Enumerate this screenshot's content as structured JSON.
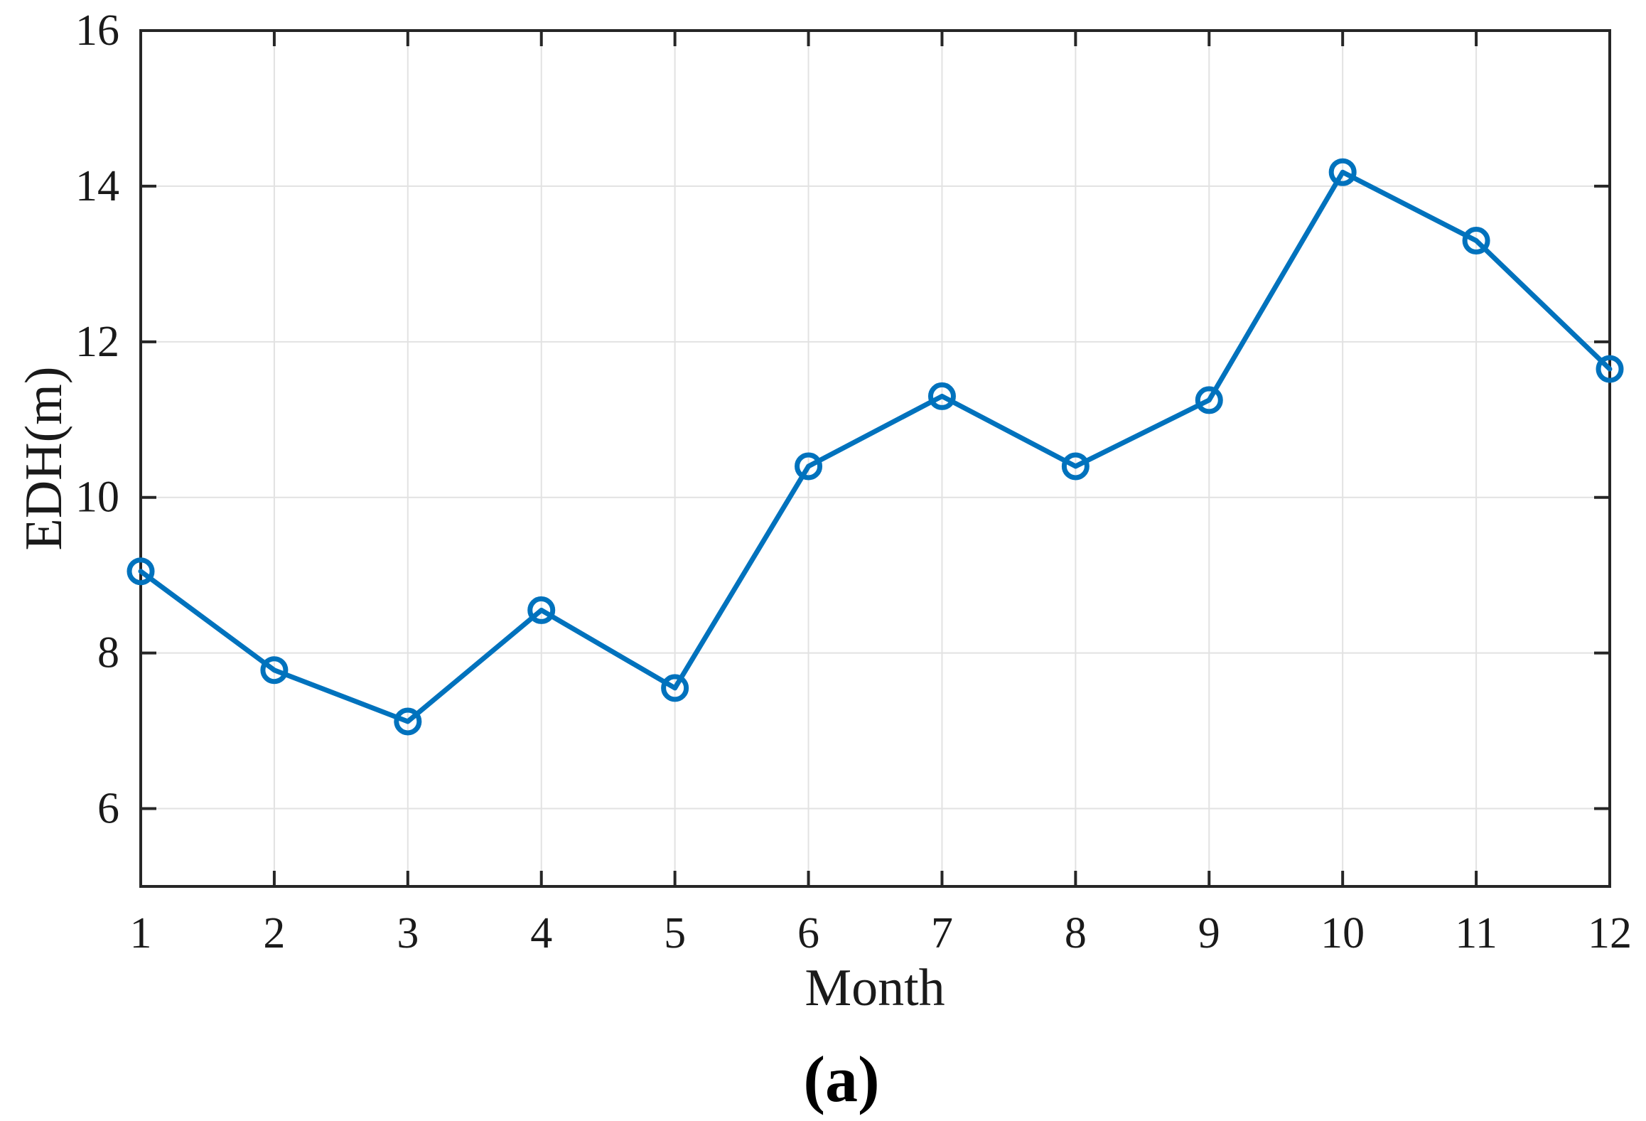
{
  "figure": {
    "caption": "(a)"
  },
  "colors": {
    "line": "#0072bd",
    "grid": "#e2e2e2",
    "axis": "#262626",
    "text": "#1a1a1a",
    "background": "#ffffff"
  },
  "chart_data": {
    "type": "line",
    "title": "",
    "xlabel": "Month",
    "ylabel": "EDH(m)",
    "caption": "(a)",
    "x": [
      1,
      2,
      3,
      4,
      5,
      6,
      7,
      8,
      9,
      10,
      11,
      12
    ],
    "series": [
      {
        "name": "EDH",
        "color": "#0072bd",
        "marker": "circle",
        "values": [
          9.05,
          7.78,
          7.12,
          8.55,
          7.55,
          10.4,
          11.3,
          10.4,
          11.25,
          14.18,
          13.3,
          11.65
        ]
      }
    ],
    "xlim": [
      1,
      12
    ],
    "ylim": [
      5,
      16
    ],
    "xticks": [
      1,
      2,
      3,
      4,
      5,
      6,
      7,
      8,
      9,
      10,
      11,
      12
    ],
    "yticks": [
      6,
      8,
      10,
      12,
      14,
      16
    ],
    "grid": true,
    "legend_position": "none"
  }
}
